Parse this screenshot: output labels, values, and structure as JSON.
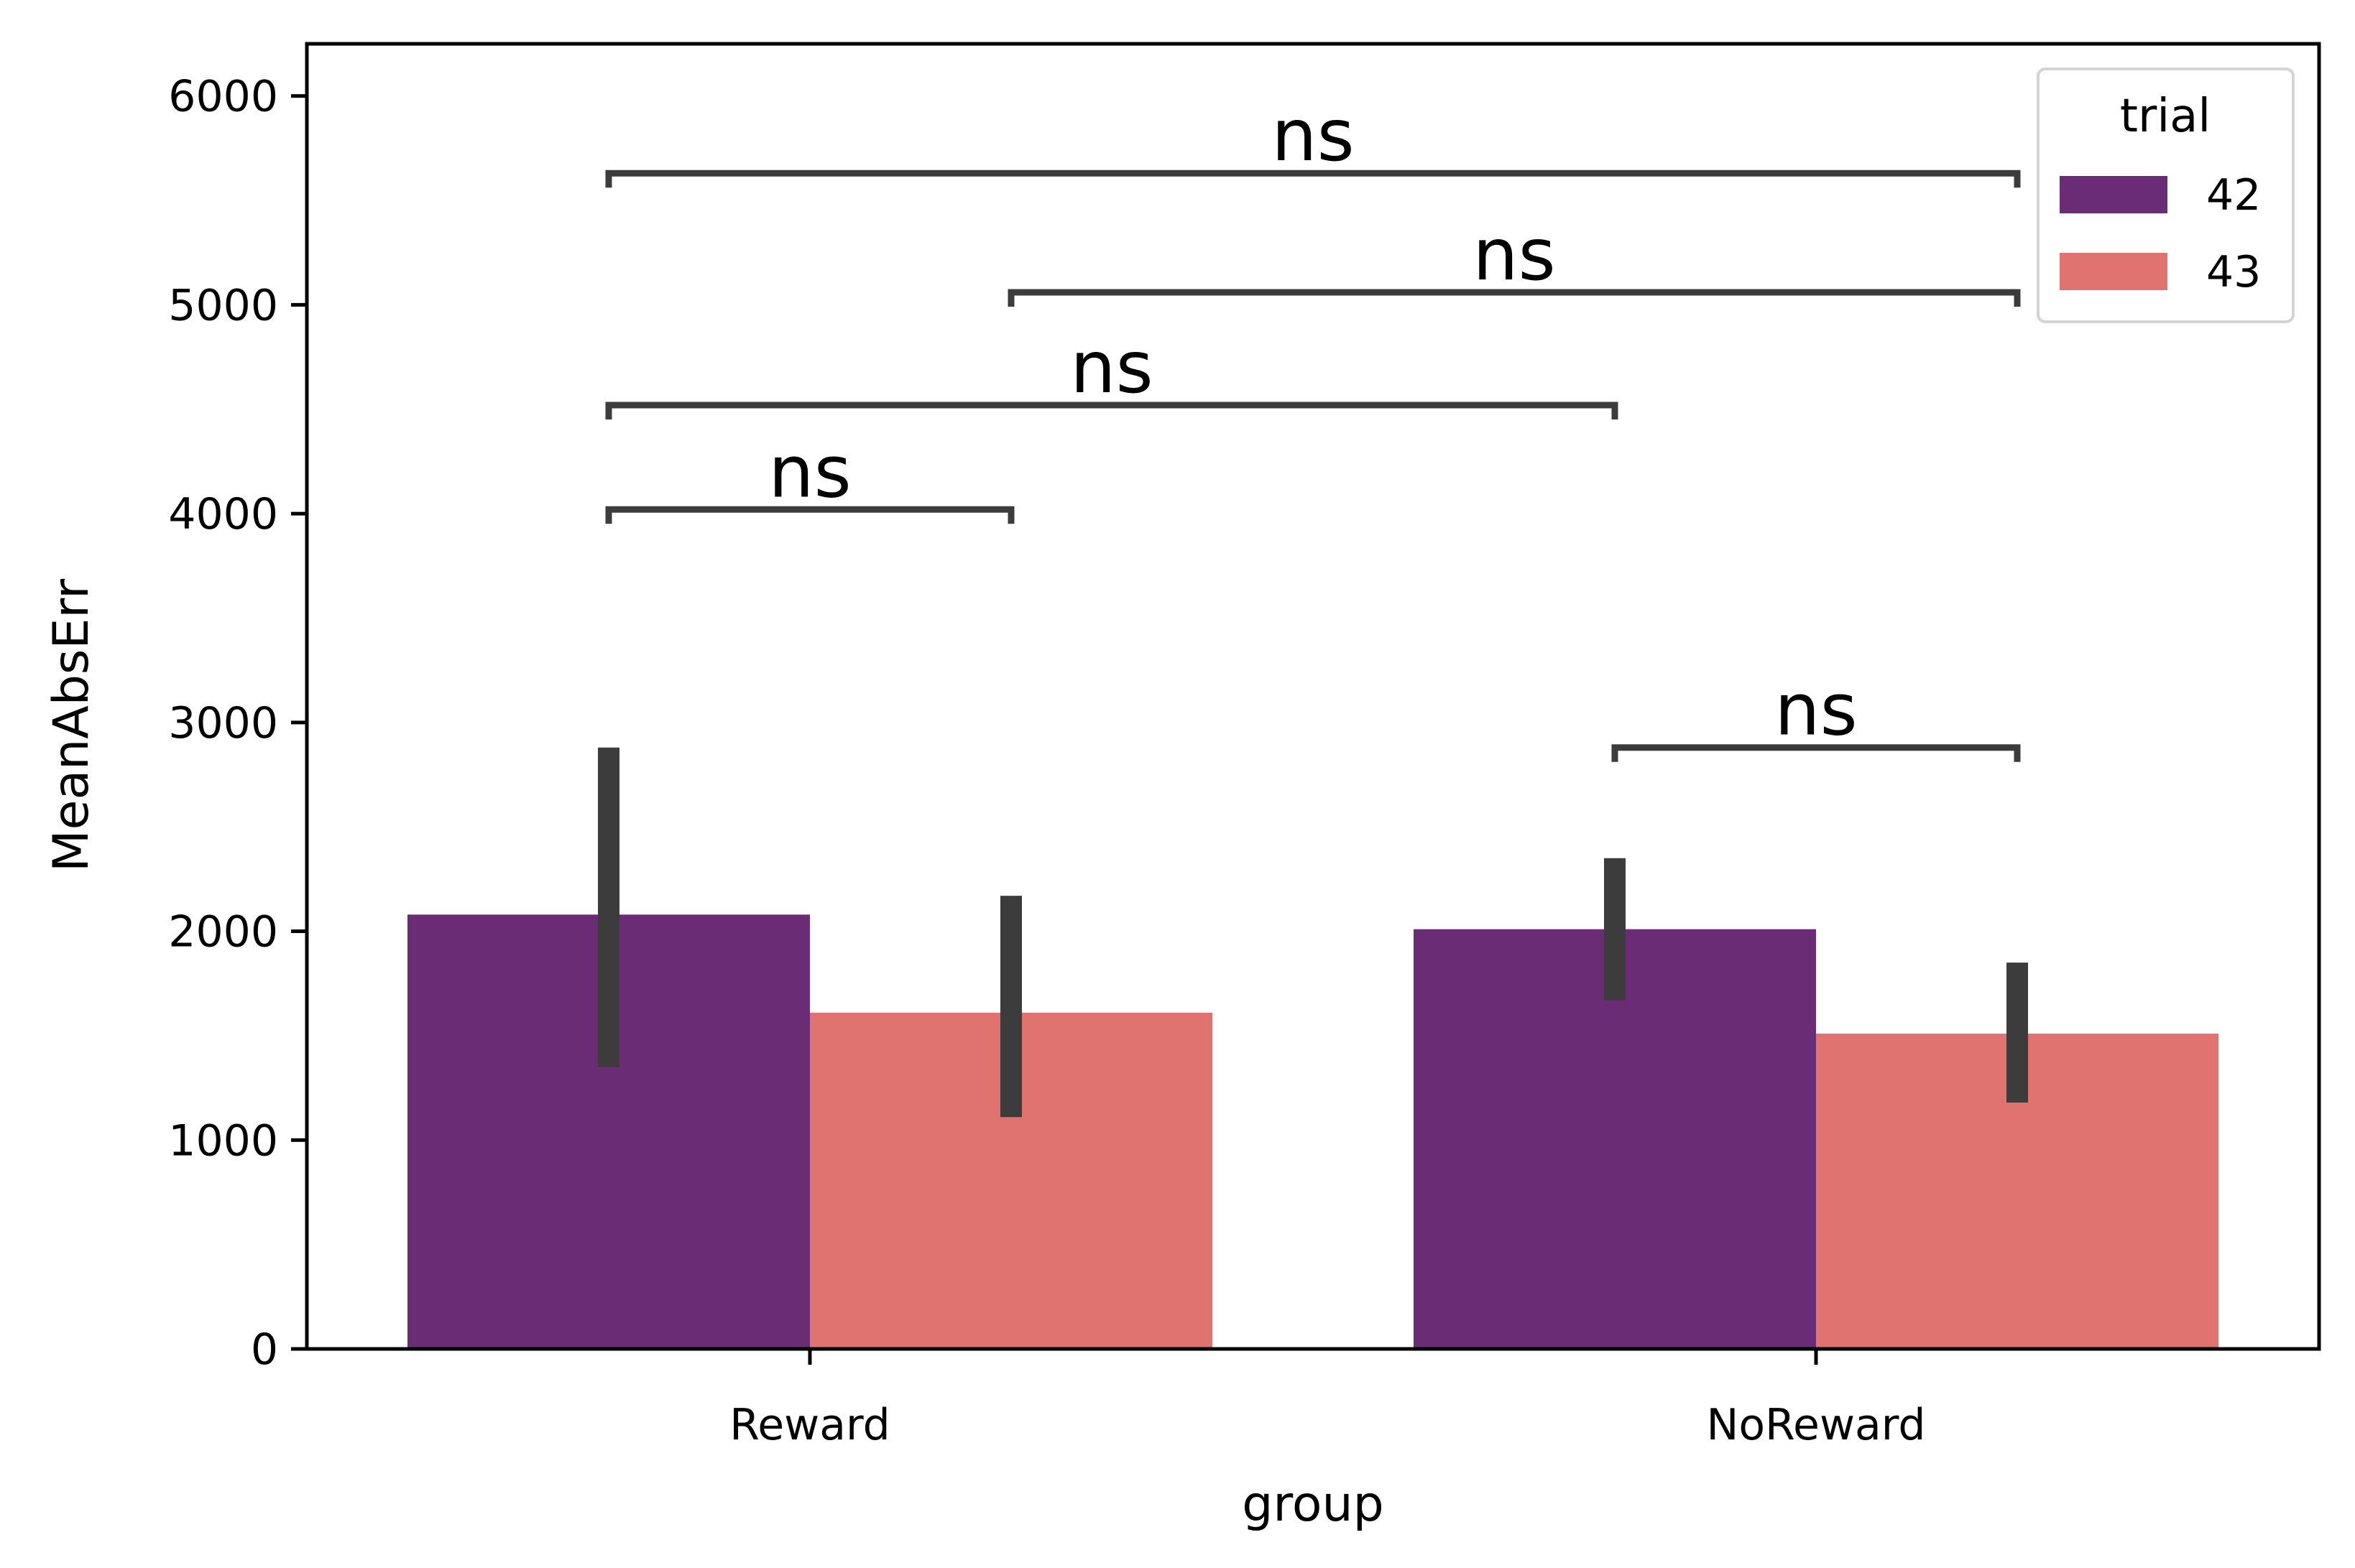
{
  "chart_data": {
    "type": "bar",
    "xlabel": "group",
    "ylabel": "MeanAbsErr",
    "categories": [
      "Reward",
      "NoReward"
    ],
    "ylim": [
      0,
      6250
    ],
    "yticks": [
      0,
      1000,
      2000,
      3000,
      4000,
      5000,
      6000
    ],
    "grid": false,
    "legend": {
      "title": "trial",
      "placement": "top-right"
    },
    "series": [
      {
        "name": "42",
        "color": "#6a2c74",
        "values": [
          2080,
          2010
        ],
        "error_low": [
          1350,
          1670
        ],
        "error_high": [
          2880,
          2350
        ]
      },
      {
        "name": "43",
        "color": "#e07370",
        "values": [
          1610,
          1510
        ],
        "error_low": [
          1110,
          1180
        ],
        "error_high": [
          2170,
          1850
        ]
      }
    ],
    "annotations": [
      {
        "text": "ns",
        "from": [
          "Reward",
          "42"
        ],
        "to": [
          "Reward",
          "43"
        ],
        "y": 4020
      },
      {
        "text": "ns",
        "from": [
          "NoReward",
          "42"
        ],
        "to": [
          "NoReward",
          "43"
        ],
        "y": 2880
      },
      {
        "text": "ns",
        "from": [
          "Reward",
          "42"
        ],
        "to": [
          "NoReward",
          "42"
        ],
        "y": 4520
      },
      {
        "text": "ns",
        "from": [
          "Reward",
          "43"
        ],
        "to": [
          "NoReward",
          "43"
        ],
        "y": 5060
      },
      {
        "text": "ns",
        "from": [
          "Reward",
          "42"
        ],
        "to": [
          "NoReward",
          "43"
        ],
        "y": 5630
      }
    ]
  }
}
